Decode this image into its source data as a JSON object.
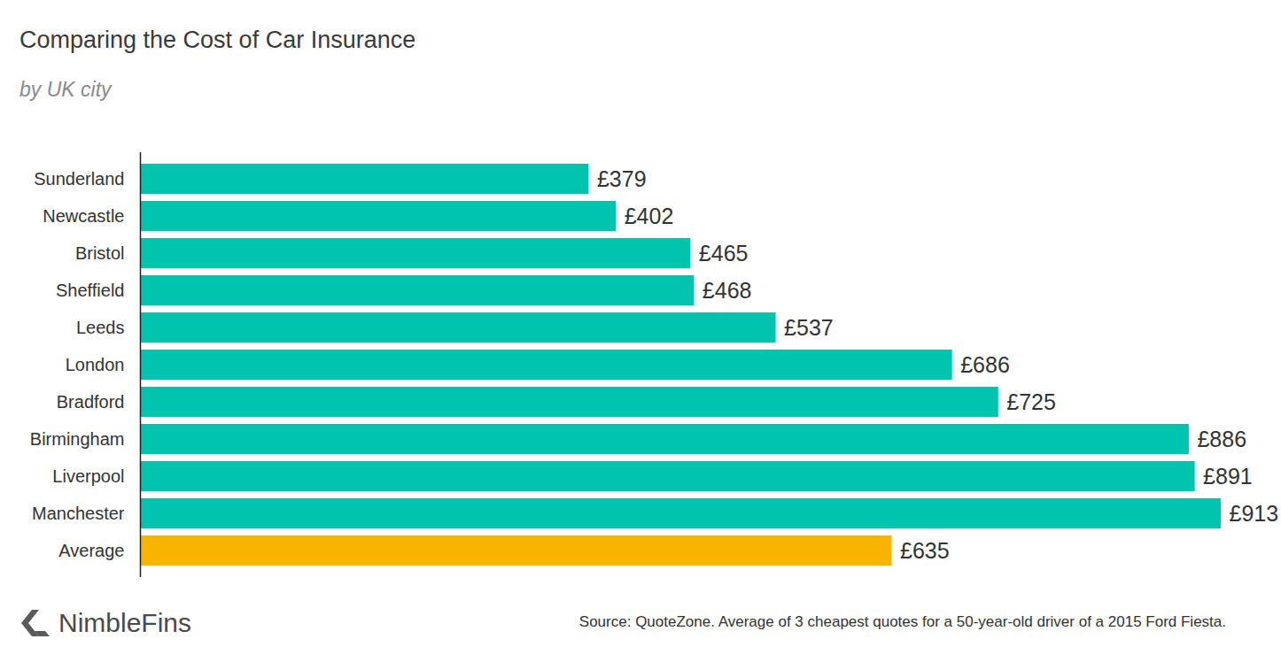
{
  "chart_data": {
    "type": "bar",
    "orientation": "horizontal",
    "title": "Comparing the Cost of Car Insurance",
    "subtitle": "by UK city",
    "source": "Source: QuoteZone. Average of 3 cheapest quotes for a 50-year-old driver of a 2015 Ford Fiesta.",
    "logo": "NimbleFins",
    "categories": [
      "Sunderland",
      "Newcastle",
      "Bristol",
      "Sheffield",
      "Leeds",
      "London",
      "Bradford",
      "Birmingham",
      "Liverpool",
      "Manchester",
      "Average"
    ],
    "values": [
      379,
      402,
      465,
      468,
      537,
      686,
      725,
      886,
      891,
      913,
      635
    ],
    "value_labels": [
      "£379",
      "£402",
      "£465",
      "£468",
      "£537",
      "£686",
      "£725",
      "£886",
      "£891",
      "£913",
      "£635"
    ],
    "colors": [
      "#00c4ae",
      "#00c4ae",
      "#00c4ae",
      "#00c4ae",
      "#00c4ae",
      "#00c4ae",
      "#00c4ae",
      "#00c4ae",
      "#00c4ae",
      "#00c4ae",
      "#f8b400"
    ],
    "xlim": [
      0,
      913
    ],
    "data_labels": true,
    "tick_labels": "y",
    "grid": false
  }
}
